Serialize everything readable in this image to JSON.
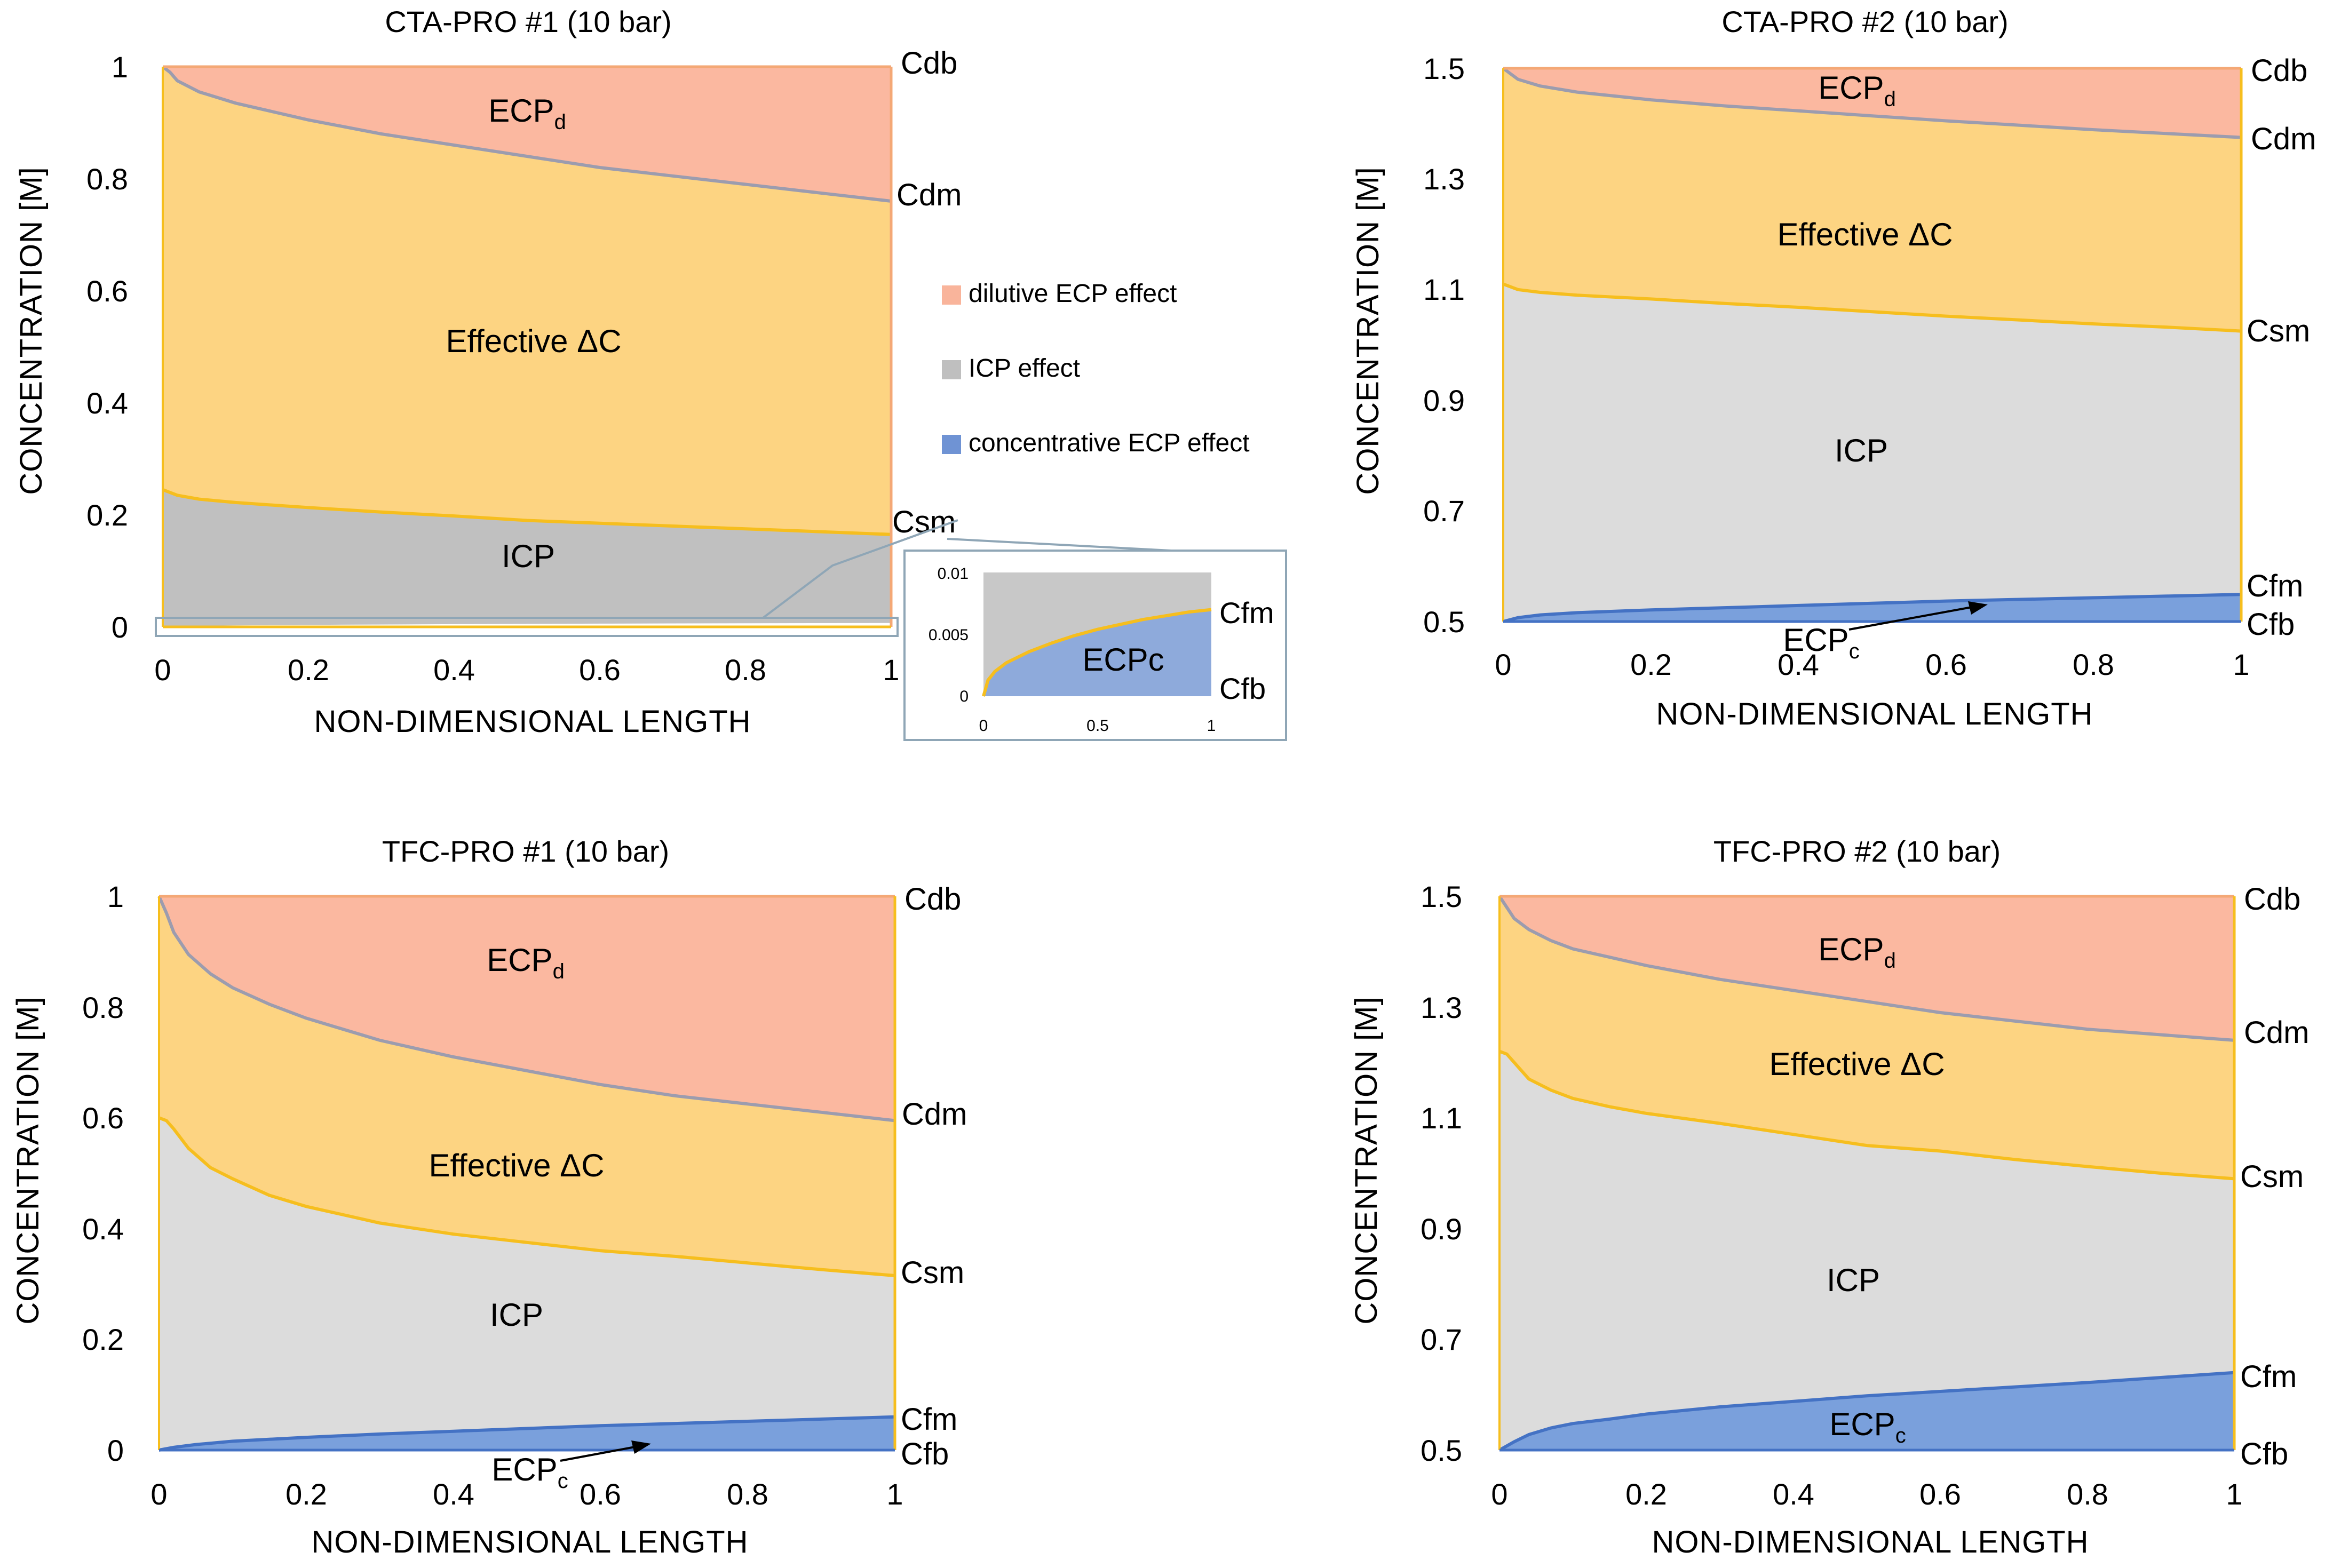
{
  "legend": {
    "items": [
      {
        "label": "dilutive ECP effect",
        "color": "#f9b49b"
      },
      {
        "label": "ICP effect",
        "color": "#bfbfbf"
      },
      {
        "label": "concentrative ECP effect",
        "color": "#6f93d4"
      }
    ]
  },
  "colors": {
    "ecpd": "#fbb8a0",
    "effective": "#fdd482",
    "icp_dark": "#c0c0c0",
    "icp_light": "#dcdcdc",
    "ecpc": "#8eaadb",
    "line_dm": "#9c9cae",
    "line_sm": "#f6be1e",
    "line_fm": "#4472c4",
    "frame": "#f4a876"
  },
  "inset": {
    "y_ticks": [
      "0.01",
      "0.005",
      "0"
    ],
    "x_ticks": [
      "0",
      "0.5",
      "1"
    ],
    "region_label": "ECPc",
    "side_labels": [
      "Cfm",
      "Cfb"
    ],
    "ylim": [
      0,
      0.01
    ],
    "csm_curve": [
      [
        0,
        0
      ],
      [
        0.02,
        0.0013
      ],
      [
        0.05,
        0.002
      ],
      [
        0.1,
        0.0027
      ],
      [
        0.2,
        0.0036
      ],
      [
        0.3,
        0.0043
      ],
      [
        0.4,
        0.0049
      ],
      [
        0.5,
        0.0054
      ],
      [
        0.6,
        0.0058
      ],
      [
        0.7,
        0.0062
      ],
      [
        0.8,
        0.0065
      ],
      [
        0.9,
        0.0068
      ],
      [
        1,
        0.007
      ]
    ]
  },
  "chart_data": [
    {
      "type": "area",
      "title": "CTA-PRO #1 (10 bar)",
      "xlabel": "NON-DIMENSIONAL LENGTH",
      "ylabel": "CONCENTRATION [M]",
      "xlim": [
        0,
        1
      ],
      "ylim": [
        0,
        1
      ],
      "x_tick_labels": [
        "0",
        "0.2",
        "0.4",
        "0.6",
        "0.8",
        "1"
      ],
      "y_tick_labels": [
        "0",
        "0.2",
        "0.4",
        "0.6",
        "0.8",
        "1"
      ],
      "series": [
        {
          "name": "Cdb",
          "points": [
            [
              0,
              1
            ],
            [
              1,
              1
            ]
          ]
        },
        {
          "name": "Cdm",
          "points": [
            [
              0,
              1
            ],
            [
              0.01,
              0.99
            ],
            [
              0.02,
              0.975
            ],
            [
              0.05,
              0.955
            ],
            [
              0.1,
              0.935
            ],
            [
              0.2,
              0.905
            ],
            [
              0.3,
              0.88
            ],
            [
              0.4,
              0.86
            ],
            [
              0.5,
              0.84
            ],
            [
              0.6,
              0.82
            ],
            [
              0.7,
              0.805
            ],
            [
              0.8,
              0.79
            ],
            [
              0.9,
              0.775
            ],
            [
              1,
              0.76
            ]
          ]
        },
        {
          "name": "Csm",
          "points": [
            [
              0,
              0.245
            ],
            [
              0.02,
              0.235
            ],
            [
              0.05,
              0.228
            ],
            [
              0.1,
              0.222
            ],
            [
              0.2,
              0.213
            ],
            [
              0.3,
              0.205
            ],
            [
              0.4,
              0.198
            ],
            [
              0.5,
              0.19
            ],
            [
              0.6,
              0.185
            ],
            [
              0.7,
              0.18
            ],
            [
              0.8,
              0.175
            ],
            [
              0.9,
              0.17
            ],
            [
              1,
              0.165
            ]
          ]
        },
        {
          "name": "Cfm",
          "points": [
            [
              0,
              0
            ],
            [
              0.02,
              0.0013
            ],
            [
              0.05,
              0.002
            ],
            [
              0.1,
              0.0027
            ],
            [
              0.2,
              0.0036
            ],
            [
              0.4,
              0.0049
            ],
            [
              0.6,
              0.0058
            ],
            [
              0.8,
              0.0065
            ],
            [
              1,
              0.007
            ]
          ]
        },
        {
          "name": "Cfb",
          "points": [
            [
              0,
              0
            ],
            [
              1,
              0
            ]
          ]
        }
      ],
      "regions": [
        {
          "name": "ECPd",
          "main": "ECP",
          "sub": "d"
        },
        {
          "name": "Effective ΔC",
          "main": "Effective ΔC",
          "sub": ""
        },
        {
          "name": "ICP",
          "main": "ICP",
          "sub": ""
        }
      ],
      "side_labels": [
        "Cdb",
        "Cdm",
        "Csm"
      ]
    },
    {
      "type": "area",
      "title": "CTA-PRO #2 (10 bar)",
      "xlabel": "NON-DIMENSIONAL LENGTH",
      "ylabel": "CONCENTRATION [M]",
      "xlim": [
        0,
        1
      ],
      "ylim": [
        0.5,
        1.5
      ],
      "x_tick_labels": [
        "0",
        "0.2",
        "0.4",
        "0.6",
        "0.8",
        "1"
      ],
      "y_tick_labels": [
        "0.5",
        "0.7",
        "0.9",
        "1.1",
        "1.3",
        "1.5"
      ],
      "series": [
        {
          "name": "Cdb",
          "points": [
            [
              0,
              1.5
            ],
            [
              1,
              1.5
            ]
          ]
        },
        {
          "name": "Cdm",
          "points": [
            [
              0,
              1.5
            ],
            [
              0.01,
              1.49
            ],
            [
              0.02,
              1.48
            ],
            [
              0.05,
              1.468
            ],
            [
              0.1,
              1.457
            ],
            [
              0.2,
              1.443
            ],
            [
              0.3,
              1.432
            ],
            [
              0.4,
              1.423
            ],
            [
              0.5,
              1.414
            ],
            [
              0.6,
              1.405
            ],
            [
              0.7,
              1.397
            ],
            [
              0.8,
              1.389
            ],
            [
              0.9,
              1.382
            ],
            [
              1,
              1.375
            ]
          ]
        },
        {
          "name": "Csm",
          "points": [
            [
              0,
              1.11
            ],
            [
              0.02,
              1.1
            ],
            [
              0.05,
              1.095
            ],
            [
              0.1,
              1.09
            ],
            [
              0.2,
              1.083
            ],
            [
              0.3,
              1.075
            ],
            [
              0.4,
              1.068
            ],
            [
              0.5,
              1.06
            ],
            [
              0.6,
              1.052
            ],
            [
              0.7,
              1.045
            ],
            [
              0.8,
              1.038
            ],
            [
              0.9,
              1.032
            ],
            [
              1,
              1.025
            ]
          ]
        },
        {
          "name": "Cfm",
          "points": [
            [
              0,
              0.5
            ],
            [
              0.02,
              0.507
            ],
            [
              0.05,
              0.512
            ],
            [
              0.1,
              0.516
            ],
            [
              0.2,
              0.521
            ],
            [
              0.3,
              0.525
            ],
            [
              0.4,
              0.529
            ],
            [
              0.5,
              0.533
            ],
            [
              0.6,
              0.537
            ],
            [
              0.7,
              0.54
            ],
            [
              0.8,
              0.543
            ],
            [
              0.9,
              0.546
            ],
            [
              1,
              0.549
            ]
          ]
        },
        {
          "name": "Cfb",
          "points": [
            [
              0,
              0.5
            ],
            [
              1,
              0.5
            ]
          ]
        }
      ],
      "regions": [
        {
          "name": "ECPd",
          "main": "ECP",
          "sub": "d"
        },
        {
          "name": "Effective ΔC",
          "main": "Effective ΔC",
          "sub": ""
        },
        {
          "name": "ICP",
          "main": "ICP",
          "sub": ""
        },
        {
          "name": "ECPc",
          "main": "ECP",
          "sub": "c"
        }
      ],
      "side_labels": [
        "Cdb",
        "Cdm",
        "Csm",
        "Cfm",
        "Cfb"
      ]
    },
    {
      "type": "area",
      "title": "TFC-PRO #1 (10 bar)",
      "xlabel": "NON-DIMENSIONAL LENGTH",
      "ylabel": "CONCENTRATION [M]",
      "xlim": [
        0,
        1
      ],
      "ylim": [
        0,
        1
      ],
      "x_tick_labels": [
        "0",
        "0.2",
        "0.4",
        "0.6",
        "0.8",
        "1"
      ],
      "y_tick_labels": [
        "0",
        "0.2",
        "0.4",
        "0.6",
        "0.8",
        "1"
      ],
      "series": [
        {
          "name": "Cdb",
          "points": [
            [
              0,
              1
            ],
            [
              1,
              1
            ]
          ]
        },
        {
          "name": "Cdm",
          "points": [
            [
              0,
              1
            ],
            [
              0.01,
              0.97
            ],
            [
              0.02,
              0.935
            ],
            [
              0.04,
              0.895
            ],
            [
              0.07,
              0.86
            ],
            [
              0.1,
              0.835
            ],
            [
              0.15,
              0.805
            ],
            [
              0.2,
              0.78
            ],
            [
              0.3,
              0.74
            ],
            [
              0.4,
              0.71
            ],
            [
              0.5,
              0.685
            ],
            [
              0.6,
              0.66
            ],
            [
              0.7,
              0.64
            ],
            [
              0.8,
              0.625
            ],
            [
              0.9,
              0.61
            ],
            [
              1,
              0.595
            ]
          ]
        },
        {
          "name": "Csm",
          "points": [
            [
              0,
              0.6
            ],
            [
              0.01,
              0.595
            ],
            [
              0.02,
              0.58
            ],
            [
              0.04,
              0.545
            ],
            [
              0.07,
              0.51
            ],
            [
              0.1,
              0.49
            ],
            [
              0.15,
              0.46
            ],
            [
              0.2,
              0.44
            ],
            [
              0.3,
              0.41
            ],
            [
              0.4,
              0.39
            ],
            [
              0.5,
              0.375
            ],
            [
              0.6,
              0.36
            ],
            [
              0.7,
              0.35
            ],
            [
              0.8,
              0.338
            ],
            [
              0.9,
              0.326
            ],
            [
              1,
              0.315
            ]
          ]
        },
        {
          "name": "Cfm",
          "points": [
            [
              0,
              0
            ],
            [
              0.02,
              0.005
            ],
            [
              0.05,
              0.01
            ],
            [
              0.1,
              0.016
            ],
            [
              0.2,
              0.023
            ],
            [
              0.3,
              0.029
            ],
            [
              0.4,
              0.034
            ],
            [
              0.5,
              0.039
            ],
            [
              0.6,
              0.044
            ],
            [
              0.7,
              0.048
            ],
            [
              0.8,
              0.052
            ],
            [
              0.9,
              0.056
            ],
            [
              1,
              0.06
            ]
          ]
        },
        {
          "name": "Cfb",
          "points": [
            [
              0,
              0
            ],
            [
              1,
              0
            ]
          ]
        }
      ],
      "regions": [
        {
          "name": "ECPd",
          "main": "ECP",
          "sub": "d"
        },
        {
          "name": "Effective ΔC",
          "main": "Effective ΔC",
          "sub": ""
        },
        {
          "name": "ICP",
          "main": "ICP",
          "sub": ""
        },
        {
          "name": "ECPc",
          "main": "ECP",
          "sub": "c"
        }
      ],
      "side_labels": [
        "Cdb",
        "Cdm",
        "Csm",
        "Cfm",
        "Cfb"
      ]
    },
    {
      "type": "area",
      "title": "TFC-PRO #2 (10 bar)",
      "xlabel": "NON-DIMENSIONAL LENGTH",
      "ylabel": "CONCENTRATION [M]",
      "xlim": [
        0,
        1
      ],
      "ylim": [
        0.5,
        1.5
      ],
      "x_tick_labels": [
        "0",
        "0.2",
        "0.4",
        "0.6",
        "0.8",
        "1"
      ],
      "y_tick_labels": [
        "0.5",
        "0.7",
        "0.9",
        "1.1",
        "1.3",
        "1.5"
      ],
      "series": [
        {
          "name": "Cdb",
          "points": [
            [
              0,
              1.5
            ],
            [
              1,
              1.5
            ]
          ]
        },
        {
          "name": "Cdm",
          "points": [
            [
              0,
              1.5
            ],
            [
              0.01,
              1.48
            ],
            [
              0.02,
              1.46
            ],
            [
              0.04,
              1.44
            ],
            [
              0.07,
              1.42
            ],
            [
              0.1,
              1.405
            ],
            [
              0.15,
              1.39
            ],
            [
              0.2,
              1.375
            ],
            [
              0.3,
              1.35
            ],
            [
              0.4,
              1.33
            ],
            [
              0.5,
              1.31
            ],
            [
              0.6,
              1.29
            ],
            [
              0.7,
              1.275
            ],
            [
              0.8,
              1.26
            ],
            [
              0.9,
              1.25
            ],
            [
              1,
              1.24
            ]
          ]
        },
        {
          "name": "Csm",
          "points": [
            [
              0,
              1.22
            ],
            [
              0.01,
              1.215
            ],
            [
              0.02,
              1.2
            ],
            [
              0.04,
              1.17
            ],
            [
              0.07,
              1.15
            ],
            [
              0.1,
              1.135
            ],
            [
              0.15,
              1.12
            ],
            [
              0.2,
              1.108
            ],
            [
              0.3,
              1.09
            ],
            [
              0.4,
              1.07
            ],
            [
              0.5,
              1.05
            ],
            [
              0.6,
              1.04
            ],
            [
              0.7,
              1.025
            ],
            [
              0.8,
              1.012
            ],
            [
              0.9,
              1.0
            ],
            [
              1,
              0.99
            ]
          ]
        },
        {
          "name": "Cfm",
          "points": [
            [
              0,
              0.5
            ],
            [
              0.02,
              0.515
            ],
            [
              0.04,
              0.528
            ],
            [
              0.07,
              0.54
            ],
            [
              0.1,
              0.548
            ],
            [
              0.15,
              0.556
            ],
            [
              0.2,
              0.565
            ],
            [
              0.3,
              0.578
            ],
            [
              0.4,
              0.588
            ],
            [
              0.5,
              0.598
            ],
            [
              0.6,
              0.606
            ],
            [
              0.7,
              0.614
            ],
            [
              0.8,
              0.622
            ],
            [
              0.9,
              0.631
            ],
            [
              1,
              0.64
            ]
          ]
        },
        {
          "name": "Cfb",
          "points": [
            [
              0,
              0.5
            ],
            [
              1,
              0.5
            ]
          ]
        }
      ],
      "regions": [
        {
          "name": "ECPd",
          "main": "ECP",
          "sub": "d"
        },
        {
          "name": "Effective ΔC",
          "main": "Effective ΔC",
          "sub": ""
        },
        {
          "name": "ICP",
          "main": "ICP",
          "sub": ""
        },
        {
          "name": "ECPc",
          "main": "ECP",
          "sub": "c"
        }
      ],
      "side_labels": [
        "Cdb",
        "Cdm",
        "Csm",
        "Cfm",
        "Cfb"
      ]
    }
  ]
}
